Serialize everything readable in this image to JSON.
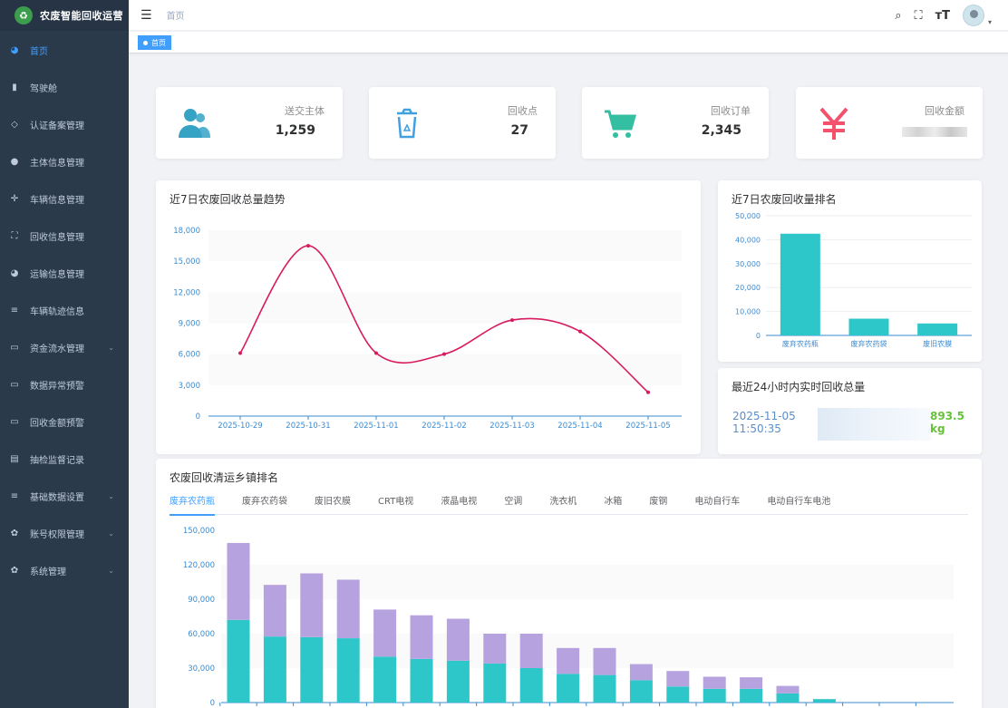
{
  "app": {
    "title": "农废智能回收运营"
  },
  "sidebar": {
    "items": [
      {
        "label": "首页",
        "icon": "dashboard-icon",
        "active": true,
        "has_arrow": false
      },
      {
        "label": "驾驶舱",
        "icon": "bar-chart-icon",
        "active": false,
        "has_arrow": false
      },
      {
        "label": "认证备案管理",
        "icon": "shield-icon",
        "active": false,
        "has_arrow": false
      },
      {
        "label": "主体信息管理",
        "icon": "user-icon",
        "active": false,
        "has_arrow": false
      },
      {
        "label": "车辆信息管理",
        "icon": "move-icon",
        "active": false,
        "has_arrow": false
      },
      {
        "label": "回收信息管理",
        "icon": "fullscreen-icon",
        "active": false,
        "has_arrow": false
      },
      {
        "label": "运输信息管理",
        "icon": "dashboard-icon",
        "active": false,
        "has_arrow": false
      },
      {
        "label": "车辆轨迹信息",
        "icon": "list-icon",
        "active": false,
        "has_arrow": false
      },
      {
        "label": "资金流水管理",
        "icon": "monitor-icon",
        "active": false,
        "has_arrow": true
      },
      {
        "label": "数据异常预警",
        "icon": "monitor-icon",
        "active": false,
        "has_arrow": false
      },
      {
        "label": "回收金额预警",
        "icon": "monitor-icon",
        "active": false,
        "has_arrow": false
      },
      {
        "label": "抽检监督记录",
        "icon": "document-icon",
        "active": false,
        "has_arrow": false
      },
      {
        "label": "基础数据设置",
        "icon": "list-icon",
        "active": false,
        "has_arrow": true
      },
      {
        "label": "账号权限管理",
        "icon": "gear-icon",
        "active": false,
        "has_arrow": true
      },
      {
        "label": "系统管理",
        "icon": "gear-icon",
        "active": false,
        "has_arrow": true
      }
    ]
  },
  "header": {
    "breadcrumb": "首页"
  },
  "tags": [
    {
      "label": "首页"
    }
  ],
  "stats": [
    {
      "label": "送交主体",
      "value": "1,259",
      "icon": "users-icon",
      "color": "#36a3c4"
    },
    {
      "label": "回收点",
      "value": "27",
      "icon": "recycle-bin-icon",
      "color": "#40a0e0"
    },
    {
      "label": "回收订单",
      "value": "2,345",
      "icon": "cart-icon",
      "color": "#34bfa3"
    },
    {
      "label": "回收金额",
      "value": "",
      "icon": "yen-icon",
      "color": "#f4516c"
    }
  ],
  "trend": {
    "title": "近7日农废回收总量趋势",
    "chart_data": {
      "type": "line",
      "x": [
        "2025-10-29",
        "2025-10-31",
        "2025-11-01",
        "2025-11-02",
        "2025-11-03",
        "2025-11-04",
        "2025-11-05"
      ],
      "values": [
        6100,
        16500,
        6100,
        6000,
        9300,
        8200,
        2300
      ],
      "ylim": [
        0,
        18000
      ],
      "yticks": [
        "0",
        "3,000",
        "6,000",
        "9,000",
        "12,000",
        "15,000",
        "18,000"
      ],
      "color": "#d81b60"
    }
  },
  "rank": {
    "title": "近7日农废回收量排名",
    "chart_data": {
      "type": "bar",
      "categories": [
        "废弃农药瓶",
        "废弃农药袋",
        "废旧农膜"
      ],
      "values": [
        42500,
        7000,
        5000
      ],
      "ylim": [
        0,
        50000
      ],
      "yticks": [
        "0",
        "10,000",
        "20,000",
        "30,000",
        "40,000",
        "50,000"
      ],
      "color": "#2ec7c9"
    }
  },
  "realtime": {
    "title": "最近24小时内实时回收总量",
    "date": "2025-11-05",
    "time": "11:50:35",
    "value": "893.5",
    "unit": "kg"
  },
  "town": {
    "title": "农废回收清运乡镇排名",
    "tabs": [
      "废弃农药瓶",
      "废弃农药袋",
      "废旧农膜",
      "CRT电视",
      "液晶电视",
      "空调",
      "洗衣机",
      "冰箱",
      "废钢",
      "电动自行车",
      "电动自行车电池"
    ],
    "active_tab": 0,
    "chart_data": {
      "type": "bar",
      "stacked": true,
      "ylim": [
        0,
        150000
      ],
      "yticks": [
        "0",
        "30,000",
        "60,000",
        "90,000",
        "120,000",
        "150,000"
      ],
      "series": [
        {
          "color": "#2ec7c9",
          "values": [
            72000,
            57500,
            57000,
            56000,
            40000,
            38000,
            36500,
            34000,
            30000,
            25000,
            24000,
            19500,
            14000,
            12000,
            12000,
            8000,
            3000,
            0,
            0,
            0
          ]
        },
        {
          "color": "#b6a2de",
          "values": [
            67000,
            45000,
            55500,
            51000,
            41000,
            38000,
            36500,
            26000,
            30000,
            22500,
            23500,
            14000,
            13500,
            10500,
            10000,
            6500,
            0,
            0,
            0,
            0
          ]
        }
      ]
    }
  }
}
